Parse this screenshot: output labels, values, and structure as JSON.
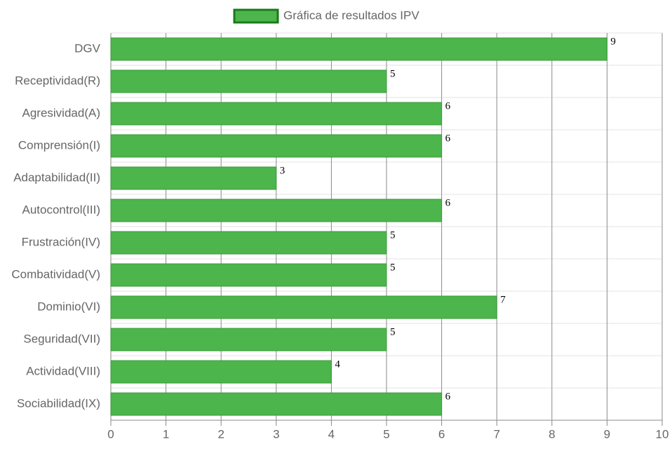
{
  "chart_data": {
    "type": "bar",
    "orientation": "horizontal",
    "series": [
      {
        "name": "Gráfica de resultados IPV",
        "color": "#4cb54c",
        "border_color": "#1a7a1a",
        "values": [
          9,
          5,
          6,
          6,
          3,
          6,
          5,
          5,
          7,
          5,
          4,
          6
        ]
      }
    ],
    "categories": [
      "DGV",
      "Receptividad(R)",
      "Agresividad(A)",
      "Comprensión(I)",
      "Adaptabilidad(II)",
      "Autocontrol(III)",
      "Frustración(IV)",
      "Combatividad(V)",
      "Dominio(VI)",
      "Seguridad(VII)",
      "Actividad(VIII)",
      "Sociabilidad(IX)"
    ],
    "xlim": [
      0,
      10
    ],
    "xticks": [
      0,
      1,
      2,
      3,
      4,
      5,
      6,
      7,
      8,
      9,
      10
    ],
    "grid": true,
    "legend": "top"
  }
}
